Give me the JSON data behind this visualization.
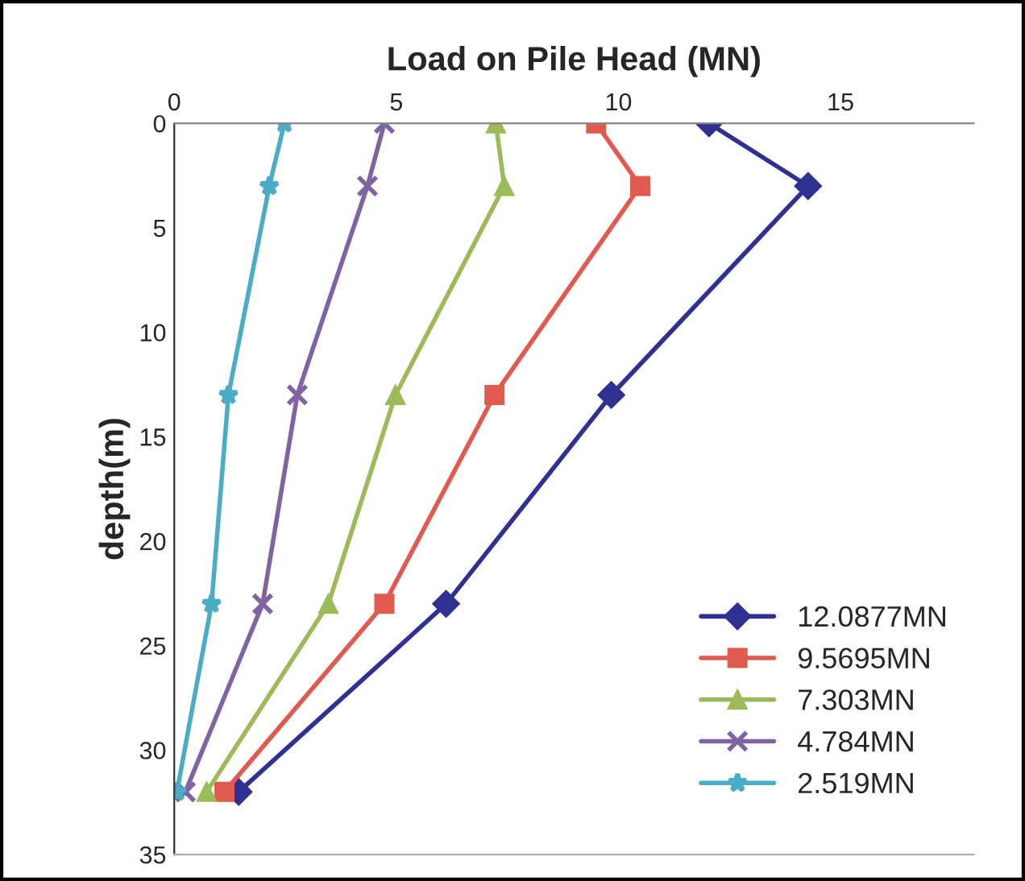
{
  "chart_data": {
    "type": "line",
    "orientation": "horizontal",
    "xlabel": "Load on Pile Head (MN)",
    "ylabel": "depth(m)",
    "x": [
      0,
      3,
      13,
      23,
      32
    ],
    "xlim": [
      0,
      18
    ],
    "xticks": [
      0,
      5,
      10,
      15
    ],
    "ylim": [
      35,
      0
    ],
    "yticks": [
      0,
      5,
      10,
      15,
      20,
      25,
      30,
      35
    ],
    "grid": false,
    "legend": "bottom right",
    "series": [
      {
        "name": "12.0877MN",
        "color": "#2e3192",
        "marker": "diamond",
        "values": [
          12.04,
          14.27,
          9.84,
          6.12,
          1.45
        ]
      },
      {
        "name": "9.5695MN",
        "color": "#e05a4f",
        "marker": "square",
        "values": [
          9.5,
          10.49,
          7.21,
          4.73,
          1.13
        ]
      },
      {
        "name": "7.303MN",
        "color": "#9bbb59",
        "marker": "triangle",
        "values": [
          7.24,
          7.43,
          4.98,
          3.47,
          0.73
        ]
      },
      {
        "name": "4.784MN",
        "color": "#8064a2",
        "marker": "cross",
        "values": [
          4.73,
          4.35,
          2.77,
          1.99,
          0.25
        ]
      },
      {
        "name": "2.519MN",
        "color": "#4bacc6",
        "marker": "star",
        "values": [
          2.48,
          2.14,
          1.22,
          0.84,
          0.06
        ]
      }
    ]
  }
}
